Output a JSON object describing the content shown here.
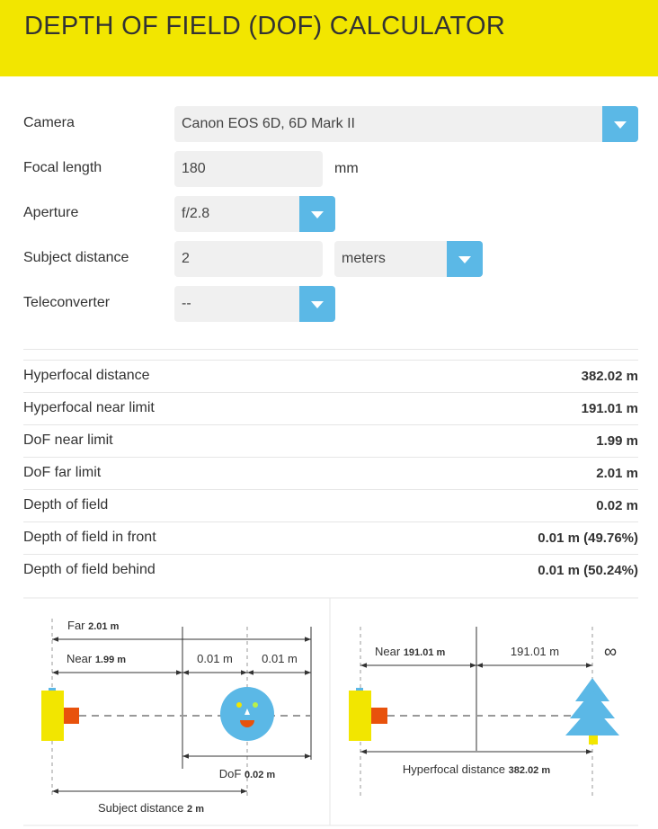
{
  "header": {
    "title": "DEPTH OF FIELD (DOF) CALCULATOR"
  },
  "form": {
    "fields": [
      {
        "label": "Camera",
        "value": "Canon EOS 6D, 6D Mark II"
      },
      {
        "label": "Focal length",
        "value": "180",
        "unit": "mm"
      },
      {
        "label": "Aperture",
        "value": "f/2.8"
      },
      {
        "label": "Subject distance",
        "value": "2",
        "unit": "meters"
      },
      {
        "label": "Teleconverter",
        "value": "--"
      }
    ]
  },
  "results": {
    "rows": [
      {
        "label": "Hyperfocal distance",
        "value": "382.02 m"
      },
      {
        "label": "Hyperfocal near limit",
        "value": "191.01 m"
      },
      {
        "label": "DoF near limit",
        "value": "1.99 m"
      },
      {
        "label": "DoF far limit",
        "value": "2.01 m"
      },
      {
        "label": "Depth of field",
        "value": "0.02 m"
      },
      {
        "label": "Depth of field in front",
        "value": "0.01 m (49.76%)"
      },
      {
        "label": "Depth of field behind",
        "value": "0.01 m (50.24%)"
      }
    ]
  },
  "diagram": {
    "dof": {
      "far_label": "Far",
      "far_value": "2.01 m",
      "near_label": "Near",
      "near_value": "1.99 m",
      "front": "0.01 m",
      "behind": "0.01 m",
      "dof_label": "DoF",
      "dof_value": "0.02 m",
      "subject_label": "Subject distance",
      "subject_value": "2 m"
    },
    "hyperfocal": {
      "near_label": "Near",
      "near_value": "191.01 m",
      "far_segment": "191.01 m",
      "infinity": "∞",
      "hyperfocal_label": "Hyperfocal distance",
      "hyperfocal_value": "382.02 m"
    }
  }
}
